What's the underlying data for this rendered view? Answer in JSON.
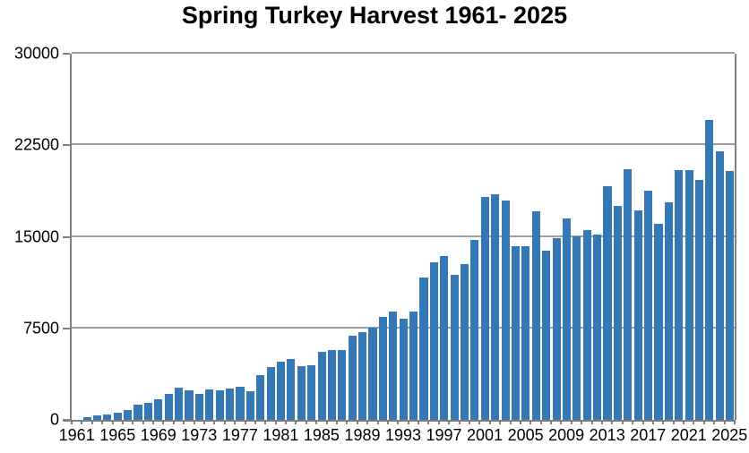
{
  "chart": {
    "title": "Spring Turkey Harvest 1961- 2025",
    "bar_color": "#3478B6",
    "gridline_color": "#9d9d9d",
    "axis_color": "#808080",
    "background_color": "#ffffff"
  },
  "chart_data": {
    "type": "bar",
    "title": "Spring Turkey Harvest 1961- 2025",
    "xlabel": "",
    "ylabel": "",
    "ylim": [
      0,
      30000
    ],
    "yticks": [
      0,
      7500,
      15000,
      22500,
      30000
    ],
    "ytick_labels": [
      "0",
      "7500",
      "15000",
      "22500",
      "30000"
    ],
    "xtick_label_every": 4,
    "grid": "horizontal",
    "legend": "none",
    "categories": [
      1961,
      1962,
      1963,
      1964,
      1965,
      1966,
      1967,
      1968,
      1969,
      1970,
      1971,
      1972,
      1973,
      1974,
      1975,
      1976,
      1977,
      1978,
      1979,
      1980,
      1981,
      1982,
      1983,
      1984,
      1985,
      1986,
      1987,
      1988,
      1989,
      1990,
      1991,
      1992,
      1993,
      1994,
      1995,
      1996,
      1997,
      1998,
      1999,
      2000,
      2001,
      2002,
      2003,
      2004,
      2005,
      2006,
      2007,
      2008,
      2009,
      2010,
      2011,
      2012,
      2013,
      2014,
      2015,
      2016,
      2017,
      2018,
      2019,
      2020,
      2021,
      2022,
      2023,
      2024,
      2025
    ],
    "values": [
      0,
      200,
      370,
      430,
      610,
      790,
      1280,
      1360,
      1700,
      2150,
      2650,
      2400,
      2100,
      2500,
      2420,
      2600,
      2720,
      2320,
      3690,
      4300,
      4750,
      5020,
      4430,
      4500,
      5540,
      5690,
      5690,
      6910,
      7170,
      7550,
      8460,
      8880,
      8290,
      8900,
      11670,
      12940,
      13410,
      11920,
      12790,
      14770,
      18270,
      18450,
      18000,
      14250,
      14260,
      17080,
      13890,
      14870,
      16520,
      15050,
      15560,
      15190,
      19160,
      17500,
      20510,
      17130,
      18790,
      16100,
      17860,
      20500,
      20500,
      19650,
      24550,
      21980,
      20400
    ]
  }
}
